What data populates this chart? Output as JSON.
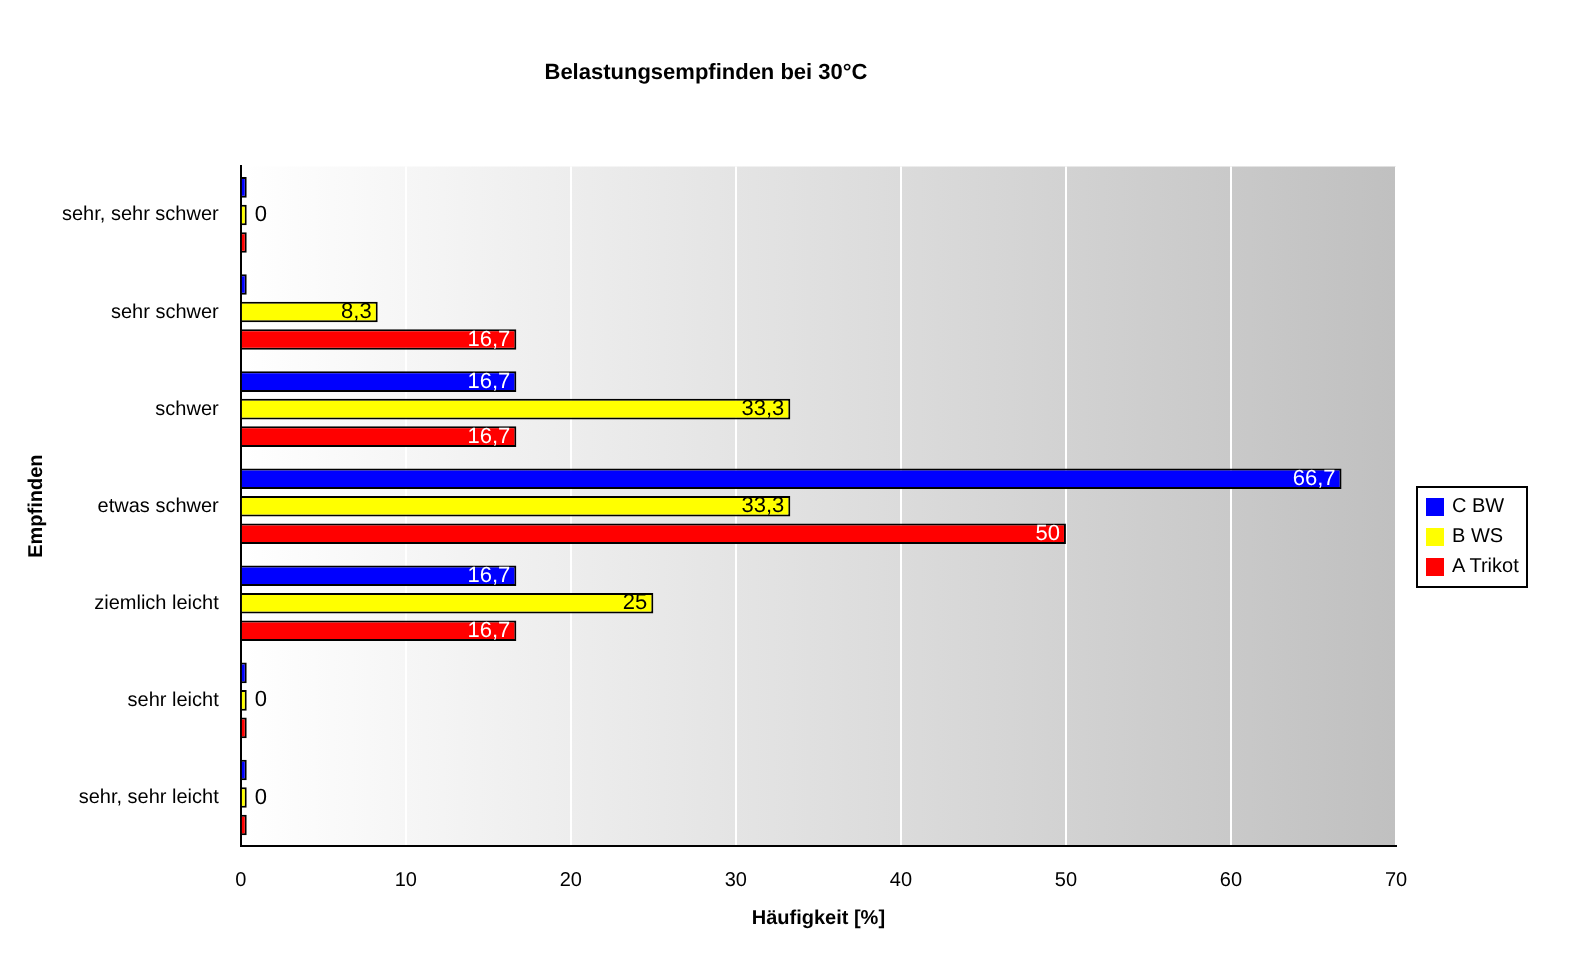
{
  "chart_data": {
    "type": "bar",
    "orientation": "horizontal",
    "title": "Belastungsempfinden bei 30°C",
    "xlabel": "Häufigkeit [%]",
    "ylabel": "Empfinden",
    "categories": [
      "sehr, sehr schwer",
      "sehr schwer",
      "schwer",
      "etwas schwer",
      "ziemlich leicht",
      "sehr leicht",
      "sehr, sehr leicht"
    ],
    "series": [
      {
        "name": "C BW",
        "color": "#0000ff",
        "values": [
          0,
          0,
          16.7,
          66.7,
          16.7,
          0,
          0
        ],
        "value_labels": [
          null,
          null,
          "16,7",
          "66,7",
          "16,7",
          null,
          null
        ]
      },
      {
        "name": "B WS",
        "color": "#ffff00",
        "values": [
          0,
          8.3,
          33.3,
          33.3,
          25,
          0,
          0
        ],
        "value_labels": [
          "0",
          "8,3",
          "33,3",
          "33,3",
          "25",
          "0",
          "0"
        ]
      },
      {
        "name": "A Trikot",
        "color": "#ff0000",
        "values": [
          0,
          16.7,
          16.7,
          50,
          16.7,
          0,
          0
        ],
        "value_labels": [
          null,
          "16,7",
          "16,7",
          "50",
          "16,7",
          null,
          null
        ]
      }
    ],
    "xlim": [
      0,
      70
    ],
    "xticks": [
      0,
      10,
      20,
      30,
      40,
      50,
      60,
      70
    ],
    "grid": "x",
    "legend": "right"
  }
}
